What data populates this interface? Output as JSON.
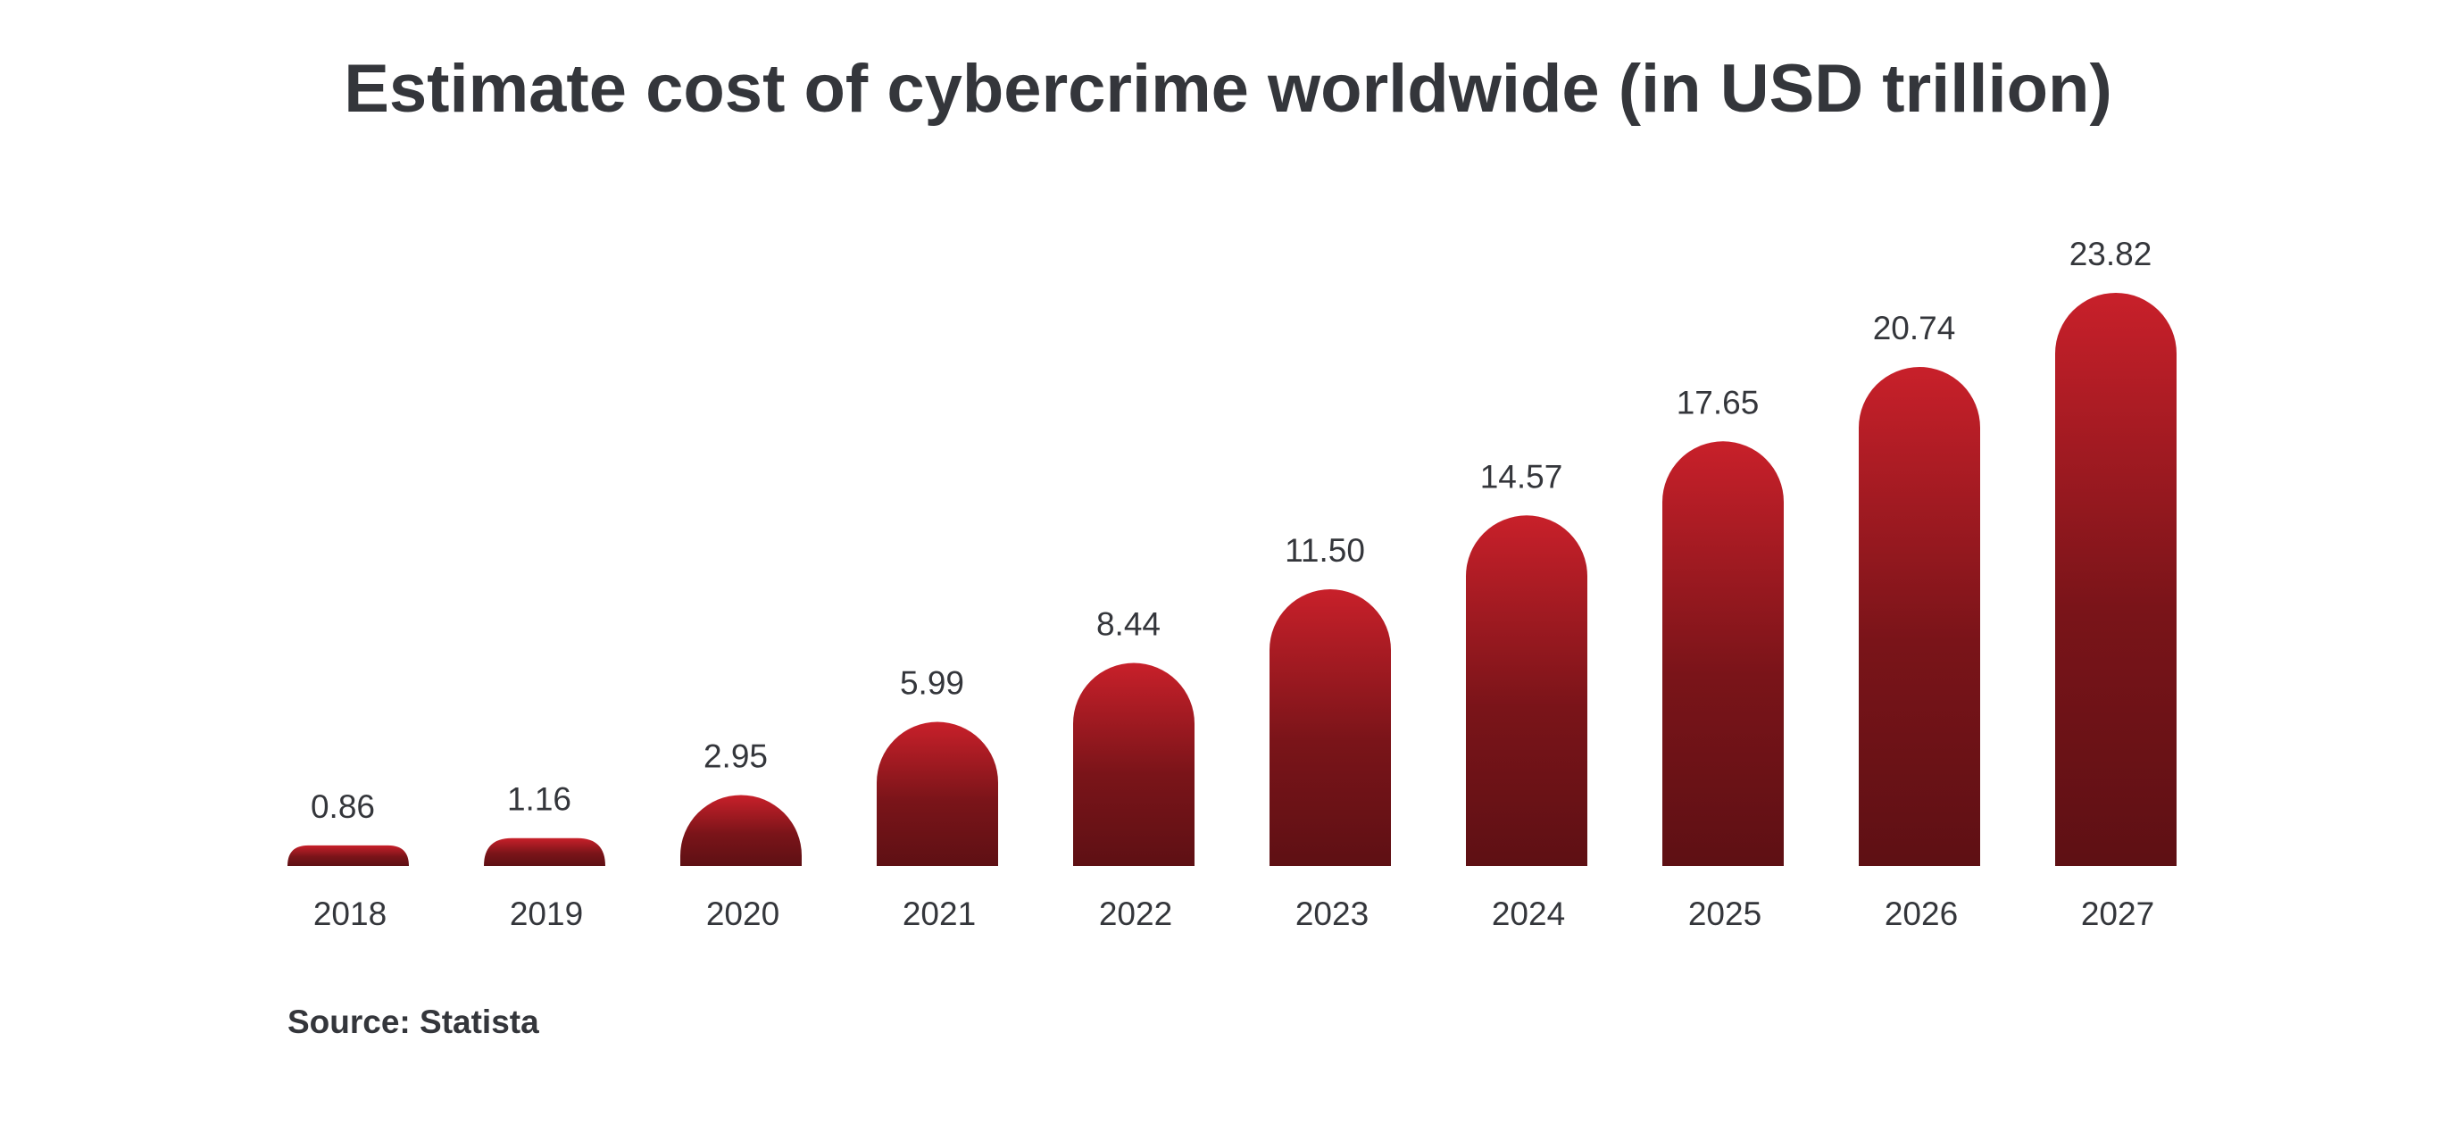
{
  "chart_data": {
    "type": "bar",
    "title": "Estimate cost of cybercrime worldwide (in USD trillion)",
    "categories": [
      "2018",
      "2019",
      "2020",
      "2021",
      "2022",
      "2023",
      "2024",
      "2025",
      "2026",
      "2027"
    ],
    "values": [
      0.86,
      1.16,
      2.95,
      5.99,
      8.44,
      11.5,
      14.57,
      17.65,
      20.74,
      23.82
    ],
    "value_labels": [
      "0.86",
      "1.16",
      "2.95",
      "5.99",
      "8.44",
      "11.50",
      "14.57",
      "17.65",
      "20.74",
      "23.82"
    ],
    "xlabel": "",
    "ylabel": "",
    "ylim": [
      0,
      23.82
    ],
    "grid": false,
    "legend": "none",
    "bar_style": "rounded-top",
    "colors": {
      "bar_top": "#c8202a",
      "bar_bottom": "#5e1014",
      "text": "#34363b"
    }
  },
  "source": "Source: Statista"
}
